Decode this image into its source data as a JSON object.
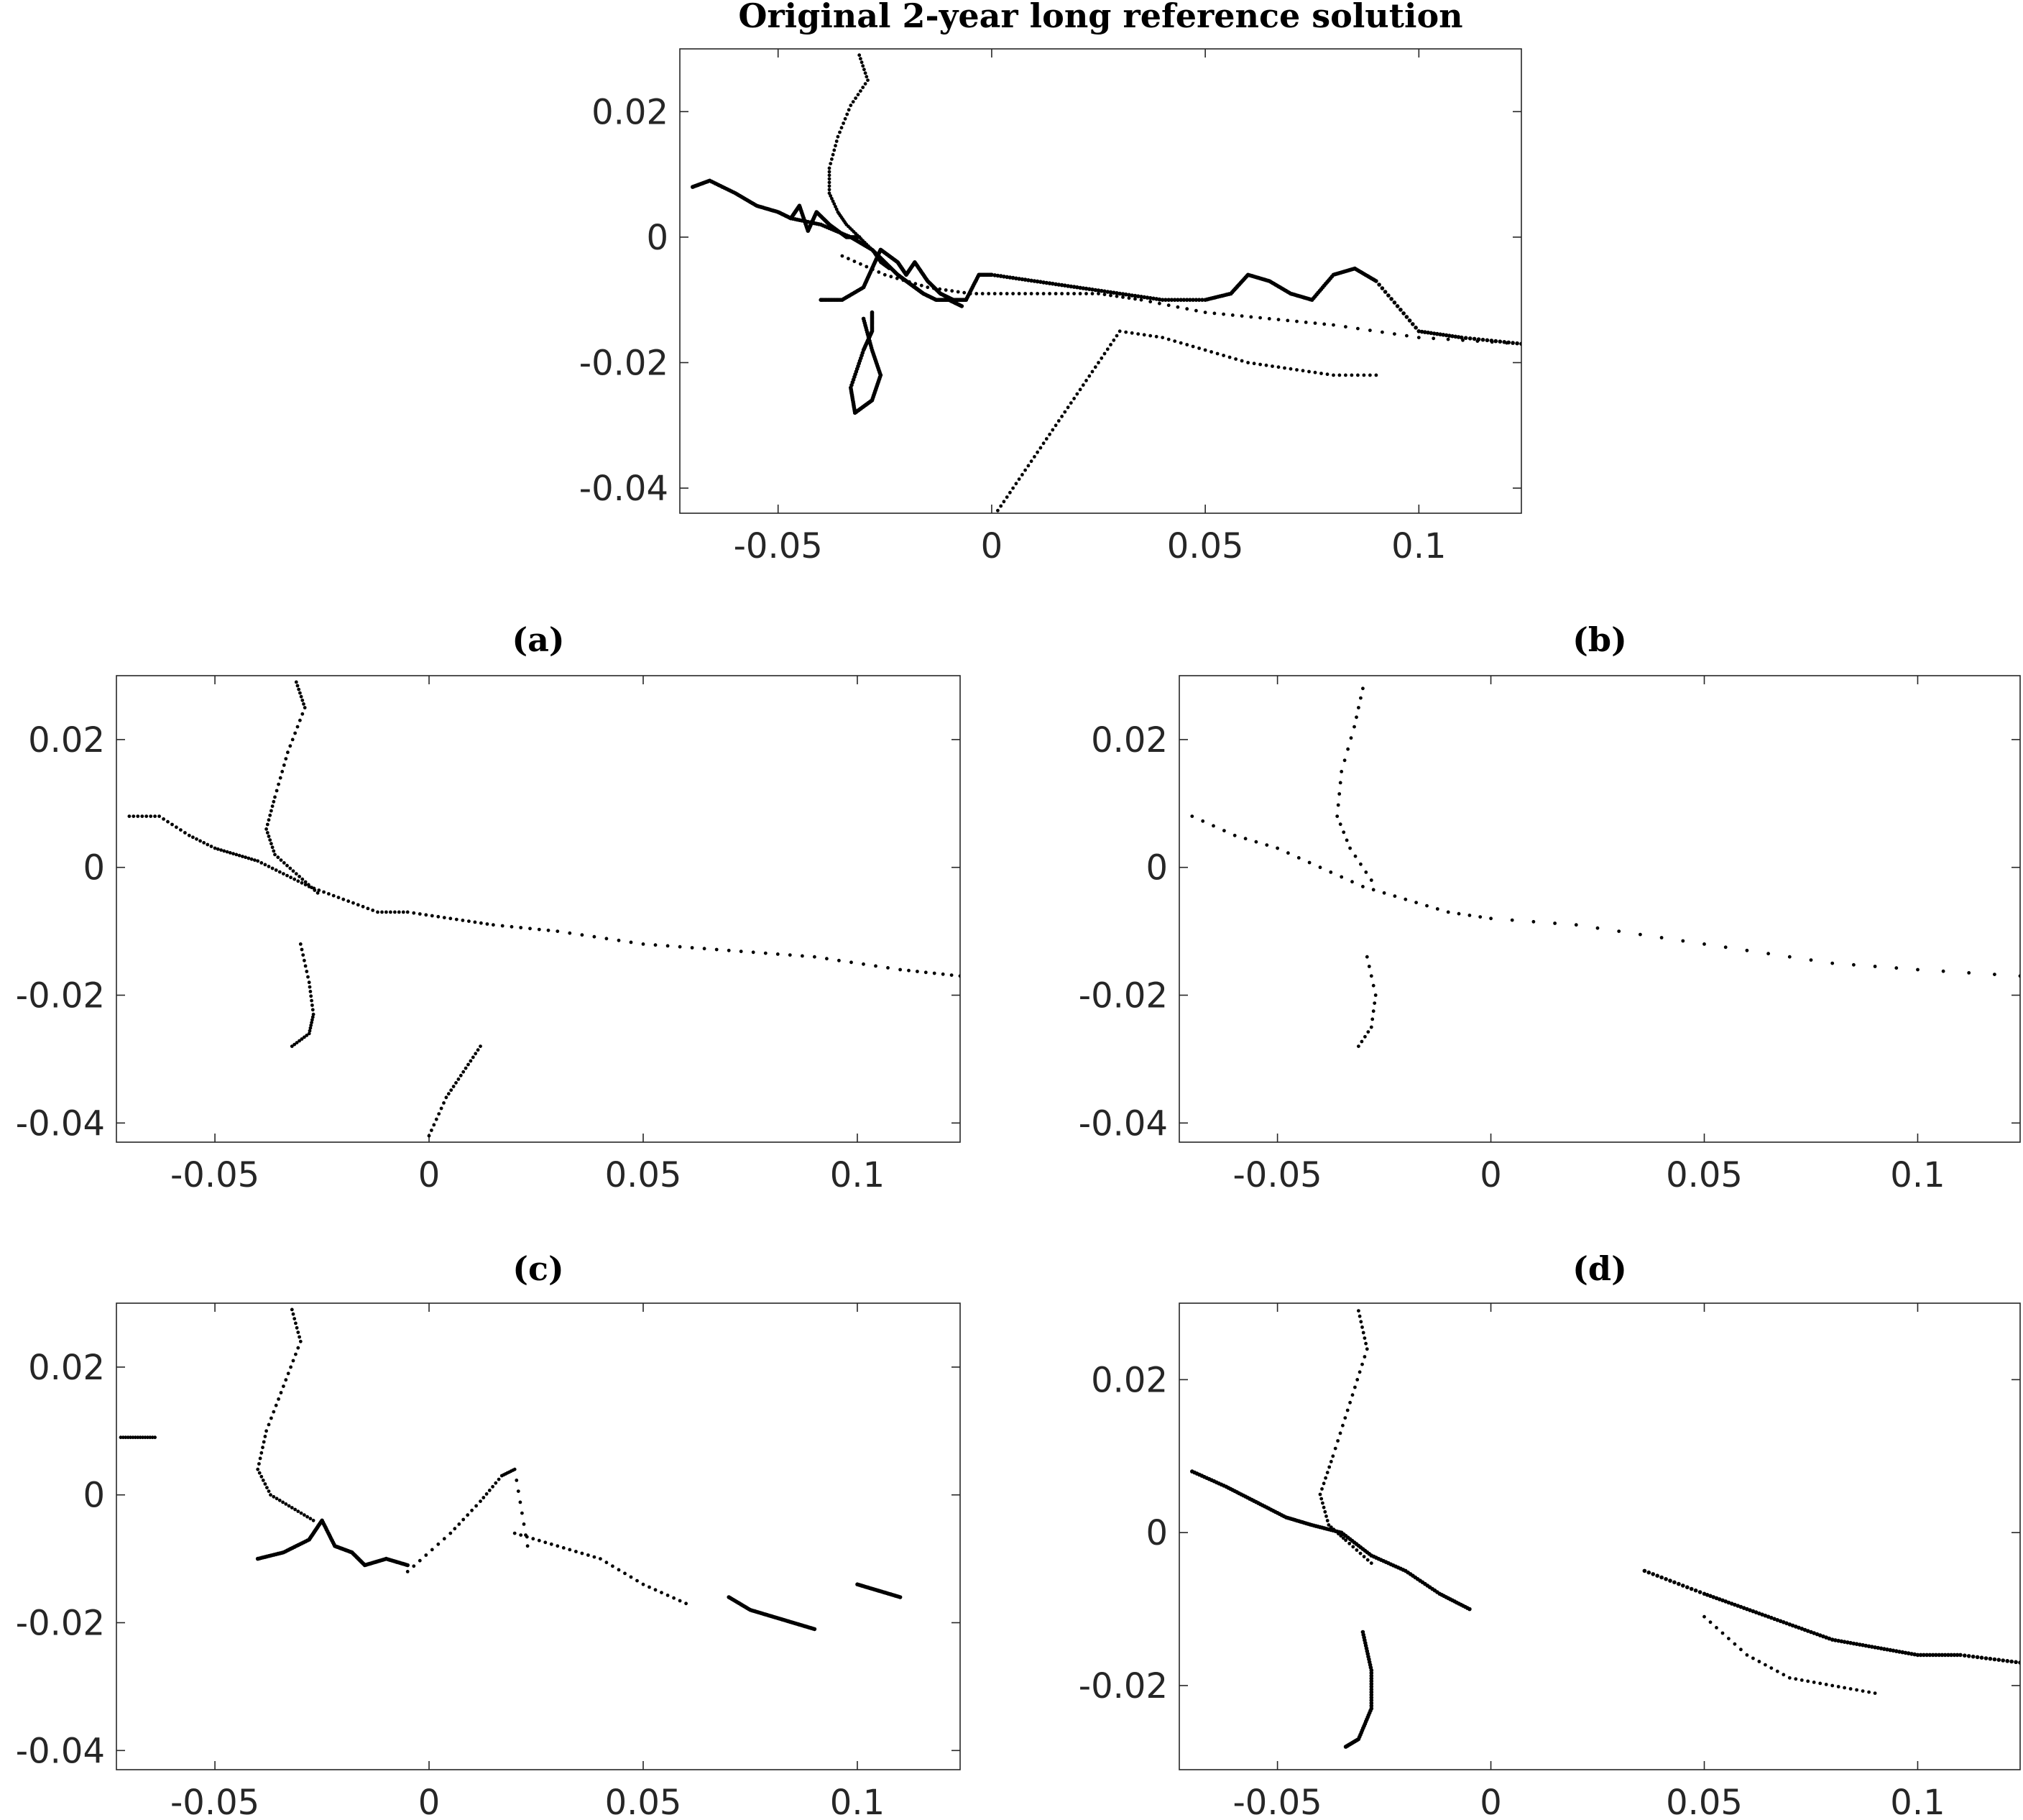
{
  "chart_data": [
    {
      "id": "top",
      "type": "scatter",
      "title": "Original 2-year long reference solution",
      "xlabel": "",
      "ylabel": "",
      "xlim": [
        -0.073,
        0.124
      ],
      "ylim": [
        -0.044,
        0.03
      ],
      "xticks": [
        -0.05,
        0,
        0.05,
        0.1
      ],
      "yticks": [
        -0.04,
        -0.02,
        0,
        0.02
      ],
      "xtick_labels": [
        "-0.05",
        "0",
        "0.05",
        "0.1"
      ],
      "ytick_labels": [
        "-0.04",
        "-0.02",
        "0",
        "0.02"
      ],
      "grid": false,
      "series": [
        {
          "style": "dotted",
          "x": [
            -0.031,
            -0.029,
            -0.033,
            -0.036,
            -0.038,
            -0.038,
            -0.036,
            -0.034,
            -0.031,
            -0.028,
            -0.026,
            -0.024
          ],
          "y": [
            0.029,
            0.025,
            0.021,
            0.016,
            0.011,
            0.007,
            0.004,
            0.002,
            0.0,
            -0.002,
            -0.004,
            -0.005
          ]
        },
        {
          "style": "solid",
          "x": [
            -0.07,
            -0.066,
            -0.06,
            -0.055,
            -0.05,
            -0.047,
            -0.045,
            -0.043,
            -0.041,
            -0.038,
            -0.034,
            -0.031
          ],
          "y": [
            0.008,
            0.009,
            0.007,
            0.005,
            0.004,
            0.003,
            0.005,
            0.001,
            0.004,
            0.002,
            0.0,
            0.0
          ]
        },
        {
          "style": "solid",
          "x": [
            -0.047,
            -0.04,
            -0.033,
            -0.028,
            -0.025,
            -0.022,
            -0.02,
            -0.018,
            -0.016,
            -0.013,
            -0.01,
            -0.007
          ],
          "y": [
            0.003,
            0.002,
            0.0,
            -0.002,
            -0.004,
            -0.006,
            -0.007,
            -0.008,
            -0.009,
            -0.01,
            -0.01,
            -0.011
          ]
        },
        {
          "style": "solid",
          "x": [
            -0.04,
            -0.035,
            -0.03,
            -0.028,
            -0.026,
            -0.022,
            -0.02,
            -0.018,
            -0.015,
            -0.012,
            -0.009,
            -0.006,
            -0.003,
            0.0
          ],
          "y": [
            -0.01,
            -0.01,
            -0.008,
            -0.005,
            -0.002,
            -0.004,
            -0.006,
            -0.004,
            -0.007,
            -0.009,
            -0.01,
            -0.01,
            -0.006,
            -0.006
          ]
        },
        {
          "style": "solid",
          "x": [
            -0.03,
            -0.028,
            -0.026,
            -0.028,
            -0.032,
            -0.033,
            -0.03,
            -0.028,
            -0.028
          ],
          "y": [
            -0.013,
            -0.018,
            -0.022,
            -0.026,
            -0.028,
            -0.024,
            -0.018,
            -0.015,
            -0.012
          ]
        },
        {
          "style": "solid",
          "x": [
            0.0,
            0.01,
            0.02,
            0.03,
            0.04,
            0.05,
            0.056,
            0.06,
            0.065,
            0.07,
            0.075,
            0.08,
            0.085,
            0.09,
            0.1,
            0.11,
            0.124
          ],
          "y": [
            -0.006,
            -0.007,
            -0.008,
            -0.009,
            -0.01,
            -0.01,
            -0.009,
            -0.006,
            -0.007,
            -0.009,
            -0.01,
            -0.006,
            -0.005,
            -0.007,
            -0.015,
            -0.016,
            -0.017
          ]
        },
        {
          "style": "dotted",
          "x": [
            -0.035,
            -0.025,
            -0.015,
            -0.005,
            0.005,
            0.015,
            0.025,
            0.035,
            0.05,
            0.065,
            0.08,
            0.1,
            0.124
          ],
          "y": [
            -0.003,
            -0.006,
            -0.008,
            -0.009,
            -0.009,
            -0.009,
            -0.009,
            -0.01,
            -0.012,
            -0.013,
            -0.014,
            -0.016,
            -0.017
          ]
        },
        {
          "style": "dotted",
          "x": [
            0.0,
            0.005,
            0.01,
            0.015,
            0.02,
            0.025,
            0.03,
            0.04,
            0.05,
            0.06,
            0.07,
            0.08,
            0.09
          ],
          "y": [
            -0.045,
            -0.04,
            -0.035,
            -0.03,
            -0.025,
            -0.02,
            -0.015,
            -0.016,
            -0.018,
            -0.02,
            -0.021,
            -0.022,
            -0.022
          ]
        }
      ]
    },
    {
      "id": "a",
      "type": "scatter",
      "title": "(a)",
      "xlabel": "",
      "ylabel": "",
      "xlim": [
        -0.073,
        0.124
      ],
      "ylim": [
        -0.043,
        0.03
      ],
      "xticks": [
        -0.05,
        0,
        0.05,
        0.1
      ],
      "yticks": [
        -0.04,
        -0.02,
        0,
        0.02
      ],
      "xtick_labels": [
        "-0.05",
        "0",
        "0.05",
        "0.1"
      ],
      "ytick_labels": [
        "-0.04",
        "-0.02",
        "0",
        "0.02"
      ],
      "grid": false,
      "series": [
        {
          "style": "dotted",
          "x": [
            -0.031,
            -0.029,
            -0.033,
            -0.036,
            -0.038,
            -0.036,
            -0.031,
            -0.026
          ],
          "y": [
            0.029,
            0.025,
            0.018,
            0.011,
            0.006,
            0.002,
            -0.001,
            -0.004
          ]
        },
        {
          "style": "dotted",
          "x": [
            -0.07,
            -0.063,
            -0.056,
            -0.05,
            -0.045,
            -0.04,
            -0.034,
            -0.028,
            -0.02,
            -0.012,
            -0.005,
            0.005,
            0.015,
            0.03,
            0.05,
            0.07,
            0.09,
            0.11,
            0.124
          ],
          "y": [
            0.008,
            0.008,
            0.005,
            0.003,
            0.002,
            0.001,
            -0.001,
            -0.003,
            -0.005,
            -0.007,
            -0.007,
            -0.008,
            -0.009,
            -0.01,
            -0.012,
            -0.013,
            -0.014,
            -0.016,
            -0.017
          ]
        },
        {
          "style": "dotted",
          "x": [
            -0.03,
            -0.028,
            -0.027,
            -0.028,
            -0.032
          ],
          "y": [
            -0.012,
            -0.018,
            -0.023,
            -0.026,
            -0.028
          ]
        },
        {
          "style": "dotted",
          "x": [
            0.0,
            0.004,
            0.008,
            0.012
          ],
          "y": [
            -0.042,
            -0.036,
            -0.032,
            -0.028
          ]
        }
      ]
    },
    {
      "id": "b",
      "type": "scatter",
      "title": "(b)",
      "xlabel": "",
      "ylabel": "",
      "xlim": [
        -0.073,
        0.124
      ],
      "ylim": [
        -0.043,
        0.03
      ],
      "xticks": [
        -0.05,
        0,
        0.05,
        0.1
      ],
      "yticks": [
        -0.04,
        -0.02,
        0,
        0.02
      ],
      "xtick_labels": [
        "-0.05",
        "0",
        "0.05",
        "0.1"
      ],
      "ytick_labels": [
        "-0.04",
        "-0.02",
        "0",
        "0.02"
      ],
      "grid": false,
      "series": [
        {
          "style": "sparse",
          "x": [
            -0.03,
            -0.032,
            -0.035,
            -0.036,
            -0.033,
            -0.028
          ],
          "y": [
            0.028,
            0.022,
            0.015,
            0.008,
            0.003,
            -0.002
          ]
        },
        {
          "style": "sparse",
          "x": [
            -0.07,
            -0.06,
            -0.05,
            -0.04,
            -0.03,
            -0.02,
            -0.01,
            0.0,
            0.02,
            0.04,
            0.06,
            0.08,
            0.1,
            0.124
          ],
          "y": [
            0.008,
            0.005,
            0.003,
            0.0,
            -0.003,
            -0.005,
            -0.007,
            -0.008,
            -0.009,
            -0.011,
            -0.013,
            -0.015,
            -0.016,
            -0.017
          ]
        },
        {
          "style": "sparse",
          "x": [
            -0.029,
            -0.027,
            -0.028,
            -0.031
          ],
          "y": [
            -0.014,
            -0.02,
            -0.025,
            -0.028
          ]
        }
      ]
    },
    {
      "id": "c",
      "type": "scatter",
      "title": "(c)",
      "xlabel": "",
      "ylabel": "",
      "xlim": [
        -0.073,
        0.124
      ],
      "ylim": [
        -0.043,
        0.03
      ],
      "xticks": [
        -0.05,
        0,
        0.05,
        0.1
      ],
      "yticks": [
        -0.04,
        -0.02,
        0,
        0.02
      ],
      "xtick_labels": [
        "-0.05",
        "0",
        "0.05",
        "0.1"
      ],
      "ytick_labels": [
        "-0.04",
        "-0.02",
        "0",
        "0.02"
      ],
      "grid": false,
      "series": [
        {
          "style": "dotted",
          "x": [
            -0.032,
            -0.03,
            -0.034,
            -0.038,
            -0.04,
            -0.037,
            -0.032,
            -0.027
          ],
          "y": [
            0.029,
            0.024,
            0.017,
            0.01,
            0.004,
            0.0,
            -0.002,
            -0.004
          ]
        },
        {
          "style": "solid",
          "x": [
            -0.04,
            -0.034,
            -0.028,
            -0.025,
            -0.022,
            -0.018,
            -0.015,
            -0.01,
            -0.005
          ],
          "y": [
            -0.01,
            -0.009,
            -0.007,
            -0.004,
            -0.008,
            -0.009,
            -0.011,
            -0.01,
            -0.011
          ]
        },
        {
          "style": "dotted",
          "x": [
            -0.005,
            0.005,
            0.012,
            0.017,
            0.02,
            0.023
          ],
          "y": [
            -0.012,
            -0.006,
            -0.001,
            0.003,
            0.004,
            -0.008
          ]
        },
        {
          "style": "dotted",
          "x": [
            0.02,
            0.03,
            0.04,
            0.05,
            0.06
          ],
          "y": [
            -0.006,
            -0.008,
            -0.01,
            -0.014,
            -0.017
          ]
        },
        {
          "style": "solid",
          "x": [
            0.07,
            0.075,
            0.08,
            0.085,
            0.09
          ],
          "y": [
            -0.016,
            -0.018,
            -0.019,
            -0.02,
            -0.021
          ]
        },
        {
          "style": "solid",
          "x": [
            0.1,
            0.105,
            0.11
          ],
          "y": [
            -0.014,
            -0.015,
            -0.016
          ]
        },
        {
          "style": "dotted",
          "x": [
            -0.072,
            -0.068,
            -0.064
          ],
          "y": [
            0.009,
            0.009,
            0.009
          ]
        }
      ]
    },
    {
      "id": "d",
      "type": "scatter",
      "title": "(d)",
      "xlabel": "",
      "ylabel": "",
      "xlim": [
        -0.073,
        0.124
      ],
      "ylim": [
        -0.031,
        0.03
      ],
      "xticks": [
        -0.05,
        0,
        0.05,
        0.1
      ],
      "yticks": [
        -0.02,
        0,
        0.02
      ],
      "xtick_labels": [
        "-0.05",
        "0",
        "0.05",
        "0.1"
      ],
      "ytick_labels": [
        "-0.02",
        "0",
        "0.02"
      ],
      "grid": false,
      "series": [
        {
          "style": "dotted",
          "x": [
            -0.031,
            -0.029,
            -0.033,
            -0.037,
            -0.04,
            -0.038,
            -0.034,
            -0.028
          ],
          "y": [
            0.029,
            0.024,
            0.017,
            0.01,
            0.005,
            0.001,
            -0.001,
            -0.004
          ]
        },
        {
          "style": "solid",
          "x": [
            -0.07,
            -0.062,
            -0.055,
            -0.048,
            -0.042,
            -0.035,
            -0.028,
            -0.02,
            -0.012,
            -0.005
          ],
          "y": [
            0.008,
            0.006,
            0.004,
            0.002,
            0.001,
            0.0,
            -0.003,
            -0.005,
            -0.008,
            -0.01
          ]
        },
        {
          "style": "solid",
          "x": [
            -0.03,
            -0.028,
            -0.028,
            -0.031,
            -0.034
          ],
          "y": [
            -0.013,
            -0.018,
            -0.023,
            -0.027,
            -0.028
          ]
        },
        {
          "style": "solid",
          "x": [
            0.036,
            0.05,
            0.06,
            0.07,
            0.08,
            0.09,
            0.1,
            0.11,
            0.124
          ],
          "y": [
            -0.005,
            -0.008,
            -0.01,
            -0.012,
            -0.014,
            -0.015,
            -0.016,
            -0.016,
            -0.017
          ]
        },
        {
          "style": "dotted",
          "x": [
            0.05,
            0.06,
            0.07,
            0.08,
            0.09
          ],
          "y": [
            -0.011,
            -0.016,
            -0.019,
            -0.02,
            -0.021
          ]
        }
      ]
    }
  ]
}
